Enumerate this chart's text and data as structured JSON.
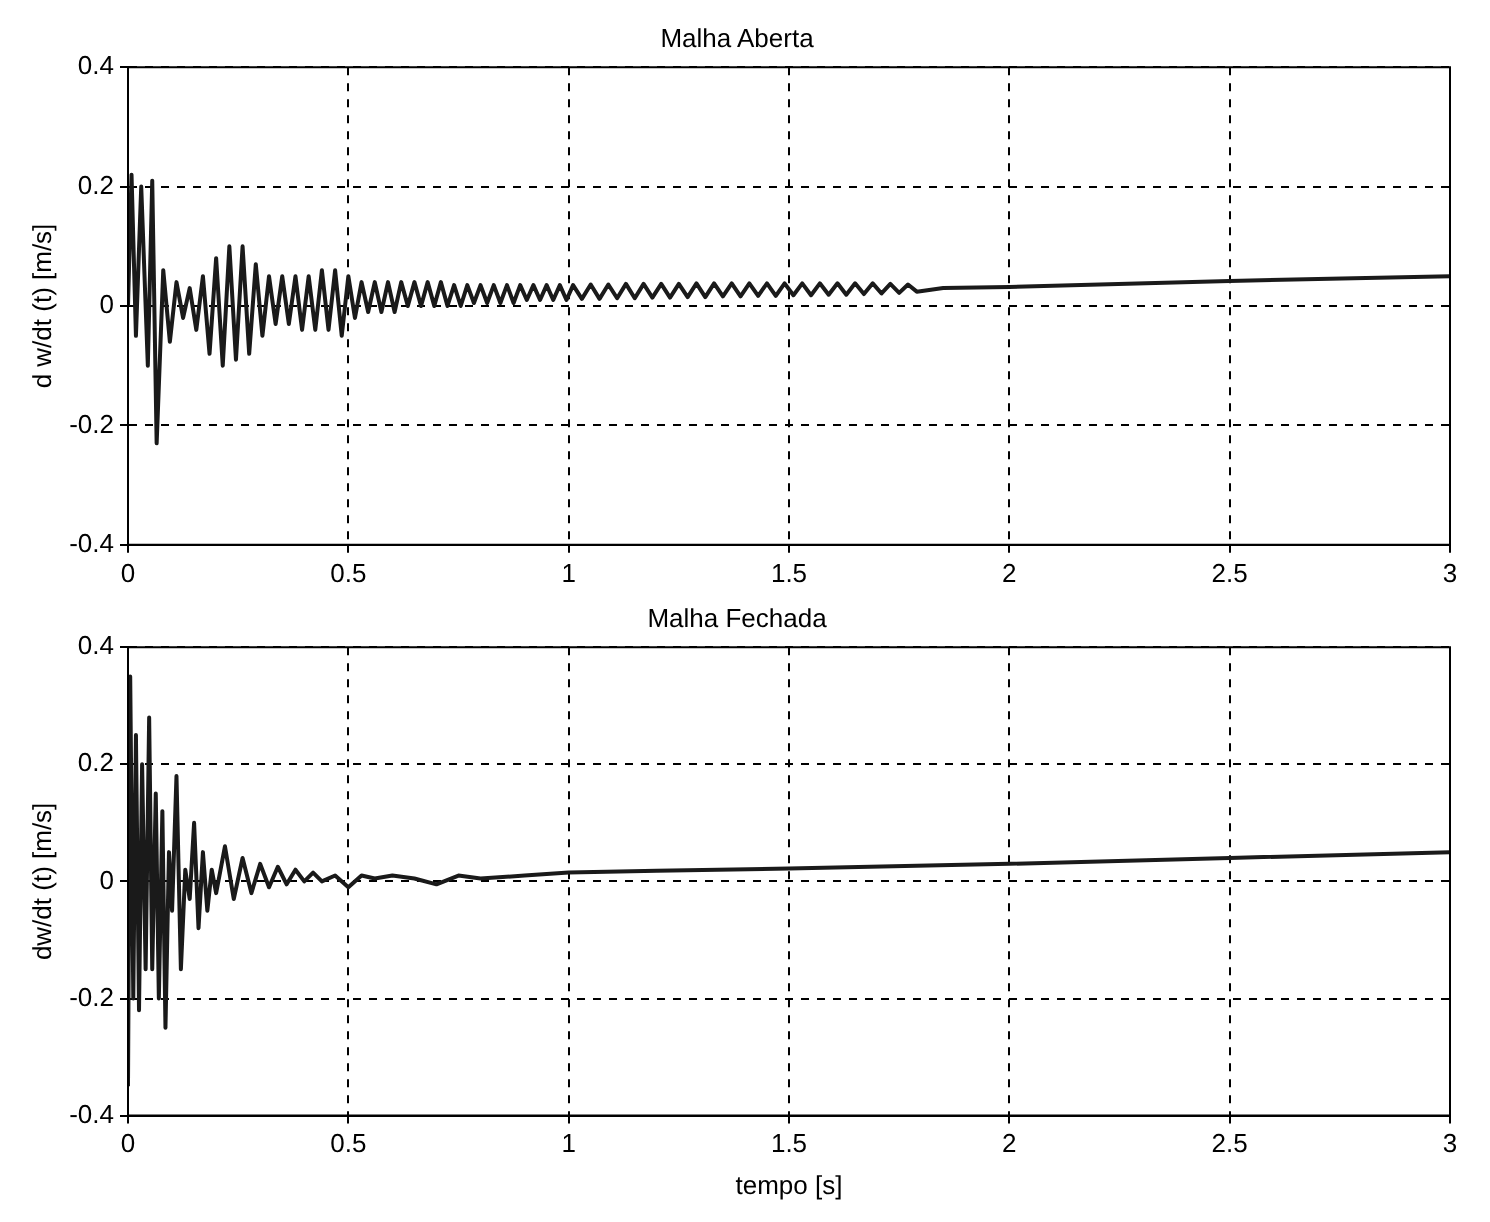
{
  "chart_data": [
    {
      "type": "line",
      "title": "Malha Aberta",
      "ylabel": "d w/dt (t) [m/s]",
      "xlim": [
        0,
        3
      ],
      "ylim": [
        -0.4,
        0.4
      ],
      "xticks": [
        0,
        0.5,
        1,
        1.5,
        2,
        2.5,
        3
      ],
      "yticks": [
        -0.4,
        -0.2,
        0,
        0.2,
        0.4
      ],
      "grid": true,
      "marker": "none",
      "x": [
        0,
        0.008,
        0.018,
        0.03,
        0.045,
        0.055,
        0.065,
        0.08,
        0.095,
        0.11,
        0.125,
        0.14,
        0.155,
        0.17,
        0.185,
        0.2,
        0.215,
        0.23,
        0.245,
        0.26,
        0.275,
        0.29,
        0.305,
        0.32,
        0.335,
        0.35,
        0.365,
        0.38,
        0.395,
        0.41,
        0.425,
        0.44,
        0.455,
        0.47,
        0.485,
        0.5,
        0.515,
        0.53,
        0.545,
        0.56,
        0.575,
        0.59,
        0.605,
        0.62,
        0.635,
        0.65,
        0.665,
        0.68,
        0.695,
        0.71,
        0.725,
        0.74,
        0.755,
        0.77,
        0.785,
        0.8,
        0.815,
        0.83,
        0.845,
        0.86,
        0.875,
        0.89,
        0.905,
        0.92,
        0.935,
        0.95,
        0.965,
        0.98,
        0.995,
        1.01,
        1.03,
        1.05,
        1.07,
        1.09,
        1.11,
        1.13,
        1.15,
        1.17,
        1.19,
        1.21,
        1.23,
        1.25,
        1.27,
        1.29,
        1.31,
        1.33,
        1.35,
        1.37,
        1.39,
        1.41,
        1.43,
        1.45,
        1.47,
        1.49,
        1.51,
        1.53,
        1.55,
        1.57,
        1.59,
        1.61,
        1.63,
        1.65,
        1.67,
        1.69,
        1.71,
        1.73,
        1.75,
        1.77,
        1.79,
        1.85,
        2,
        2.5,
        3
      ],
      "series": [
        {
          "color": "#1a1a1a",
          "values": [
            0,
            0.22,
            -0.05,
            0.2,
            -0.1,
            0.21,
            -0.23,
            0.06,
            -0.06,
            0.04,
            -0.02,
            0.03,
            -0.04,
            0.05,
            -0.08,
            0.08,
            -0.1,
            0.1,
            -0.09,
            0.1,
            -0.08,
            0.07,
            -0.05,
            0.05,
            -0.03,
            0.05,
            -0.03,
            0.05,
            -0.04,
            0.05,
            -0.04,
            0.06,
            -0.04,
            0.06,
            -0.05,
            0.05,
            -0.02,
            0.04,
            -0.01,
            0.04,
            -0.01,
            0.04,
            -0.01,
            0.04,
            0,
            0.04,
            0,
            0.04,
            0,
            0.04,
            0,
            0.035,
            0,
            0.035,
            0.005,
            0.035,
            0.005,
            0.035,
            0.005,
            0.035,
            0.005,
            0.035,
            0.01,
            0.035,
            0.01,
            0.035,
            0.01,
            0.035,
            0.01,
            0.035,
            0.012,
            0.036,
            0.012,
            0.036,
            0.013,
            0.037,
            0.013,
            0.037,
            0.014,
            0.037,
            0.014,
            0.037,
            0.015,
            0.038,
            0.015,
            0.038,
            0.016,
            0.038,
            0.016,
            0.038,
            0.017,
            0.038,
            0.017,
            0.038,
            0.018,
            0.038,
            0.018,
            0.038,
            0.019,
            0.038,
            0.019,
            0.038,
            0.02,
            0.038,
            0.021,
            0.037,
            0.022,
            0.036,
            0.024,
            0.03,
            0.032,
            0.042,
            0.05
          ]
        }
      ]
    },
    {
      "type": "line",
      "title": "Malha Fechada",
      "xlabel": "tempo [s]",
      "ylabel": "dw/dt (t) [m/s]",
      "xlim": [
        0,
        3
      ],
      "ylim": [
        -0.4,
        0.4
      ],
      "xticks": [
        0,
        0.5,
        1,
        1.5,
        2,
        2.5,
        3
      ],
      "yticks": [
        -0.4,
        -0.2,
        0,
        0.2,
        0.4
      ],
      "grid": true,
      "marker": "none",
      "x": [
        0,
        0.005,
        0.012,
        0.018,
        0.025,
        0.032,
        0.04,
        0.048,
        0.055,
        0.063,
        0.07,
        0.078,
        0.085,
        0.093,
        0.1,
        0.11,
        0.12,
        0.13,
        0.14,
        0.15,
        0.16,
        0.17,
        0.18,
        0.19,
        0.2,
        0.22,
        0.24,
        0.26,
        0.28,
        0.3,
        0.32,
        0.34,
        0.36,
        0.38,
        0.4,
        0.42,
        0.44,
        0.47,
        0.5,
        0.53,
        0.56,
        0.6,
        0.65,
        0.7,
        0.75,
        0.8,
        0.9,
        1,
        1.2,
        1.5,
        2,
        2.5,
        3
      ],
      "series": [
        {
          "color": "#1a1a1a",
          "values": [
            -0.35,
            0.35,
            -0.2,
            0.25,
            -0.22,
            0.2,
            -0.15,
            0.28,
            -0.15,
            0.15,
            -0.2,
            0.12,
            -0.25,
            0.05,
            -0.05,
            0.18,
            -0.15,
            0.02,
            -0.03,
            0.1,
            -0.08,
            0.05,
            -0.05,
            0.02,
            -0.02,
            0.06,
            -0.03,
            0.04,
            -0.02,
            0.03,
            -0.01,
            0.025,
            -0.005,
            0.02,
            0,
            0.015,
            0,
            0.01,
            -0.01,
            0.01,
            0.005,
            0.01,
            0.005,
            -0.005,
            0.01,
            0.005,
            0.01,
            0.015,
            0.018,
            0.022,
            0.03,
            0.04,
            0.05
          ]
        }
      ]
    }
  ]
}
